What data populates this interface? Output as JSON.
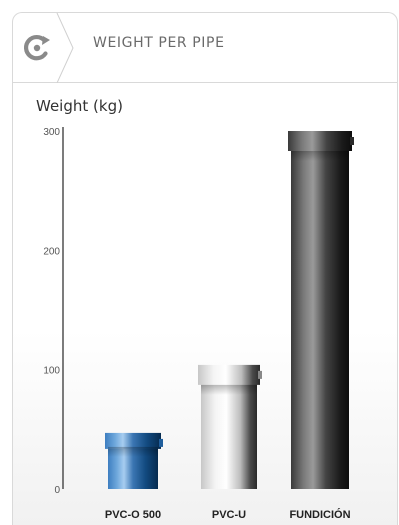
{
  "header": {
    "title": "WEIGHT PER PIPE",
    "logo_icon": "circular-arrow-icon"
  },
  "chart_data": {
    "type": "bar",
    "ylabel": "Weight (kg)",
    "ylim": [
      0,
      300
    ],
    "yticks": [
      0,
      100,
      200,
      300
    ],
    "categories": [
      "PVC-O 500",
      "PVC-U",
      "FUNDICIÓN"
    ],
    "values": [
      47,
      104,
      300
    ],
    "colors": [
      "#1f5e9c",
      "#d8d8d8",
      "#2b2b2b"
    ],
    "grid": false
  }
}
